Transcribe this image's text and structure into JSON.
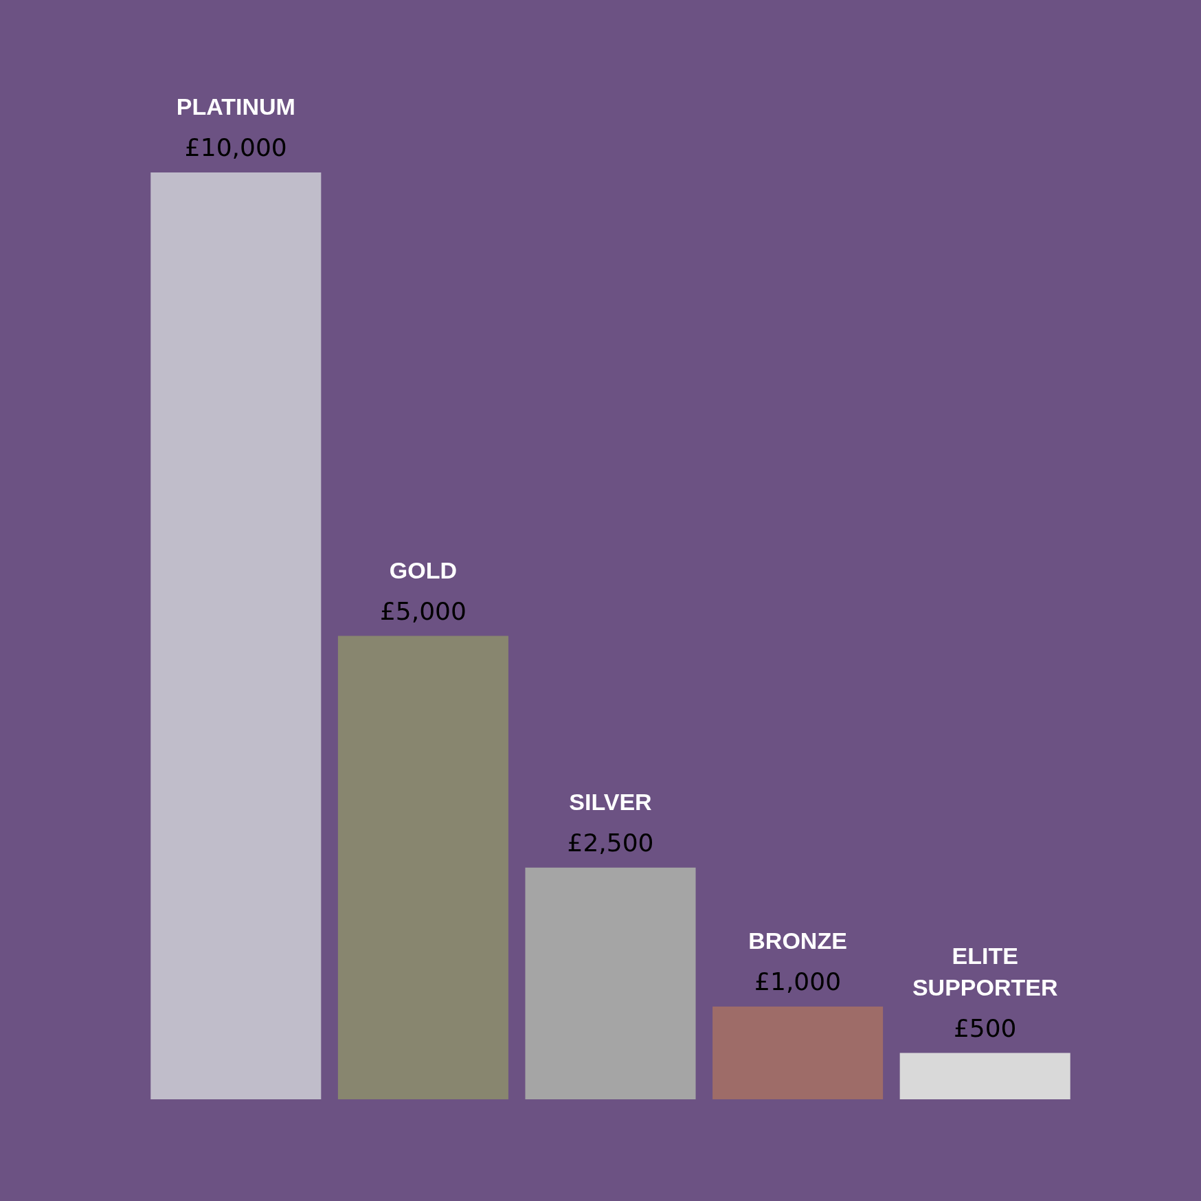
{
  "chart_data": {
    "type": "bar",
    "categories": [
      "PLATINUM",
      "GOLD",
      "SILVER",
      "BRONZE",
      "ELITE SUPPORTER"
    ],
    "values": [
      10000,
      5000,
      2500,
      1000,
      500
    ],
    "colors": [
      "#c0bdca",
      "#88866f",
      "#a5a5a5",
      "#9e6c68",
      "#d9d9d9"
    ],
    "value_labels": [
      "£10,000",
      "£5,000",
      "£2,500",
      "£1,000",
      "£500"
    ]
  }
}
